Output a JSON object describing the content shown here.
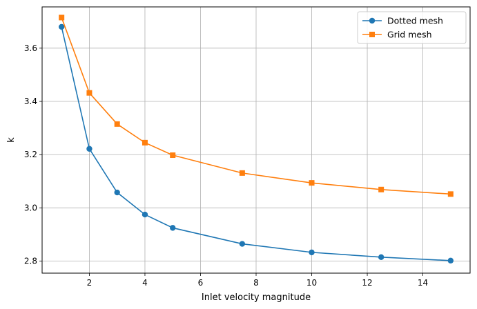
{
  "chart_data": {
    "type": "line",
    "title": "",
    "xlabel": "Inlet velocity magnitude",
    "ylabel": "k",
    "xlim": [
      0.3,
      15.7
    ],
    "ylim": [
      2.755,
      3.755
    ],
    "xticks": [
      2,
      4,
      6,
      8,
      10,
      12,
      14
    ],
    "yticks": [
      2.8,
      3.0,
      3.2,
      3.4,
      3.6
    ],
    "ytick_format": "%.1f",
    "grid": true,
    "legend_placement": "top-right",
    "series": [
      {
        "name": "Dotted mesh",
        "color": "#1f77b4",
        "marker": "circle",
        "x": [
          1,
          2,
          3,
          4,
          5,
          7.5,
          10,
          12.5,
          15
        ],
        "y": [
          3.68,
          3.222,
          3.058,
          2.975,
          2.925,
          2.865,
          2.833,
          2.815,
          2.802
        ]
      },
      {
        "name": "Grid mesh",
        "color": "#ff7f0e",
        "marker": "square",
        "x": [
          1,
          2,
          3,
          4,
          5,
          7.5,
          10,
          12.5,
          15
        ],
        "y": [
          3.715,
          3.432,
          3.315,
          3.245,
          3.198,
          3.131,
          3.094,
          3.069,
          3.052
        ]
      }
    ]
  }
}
